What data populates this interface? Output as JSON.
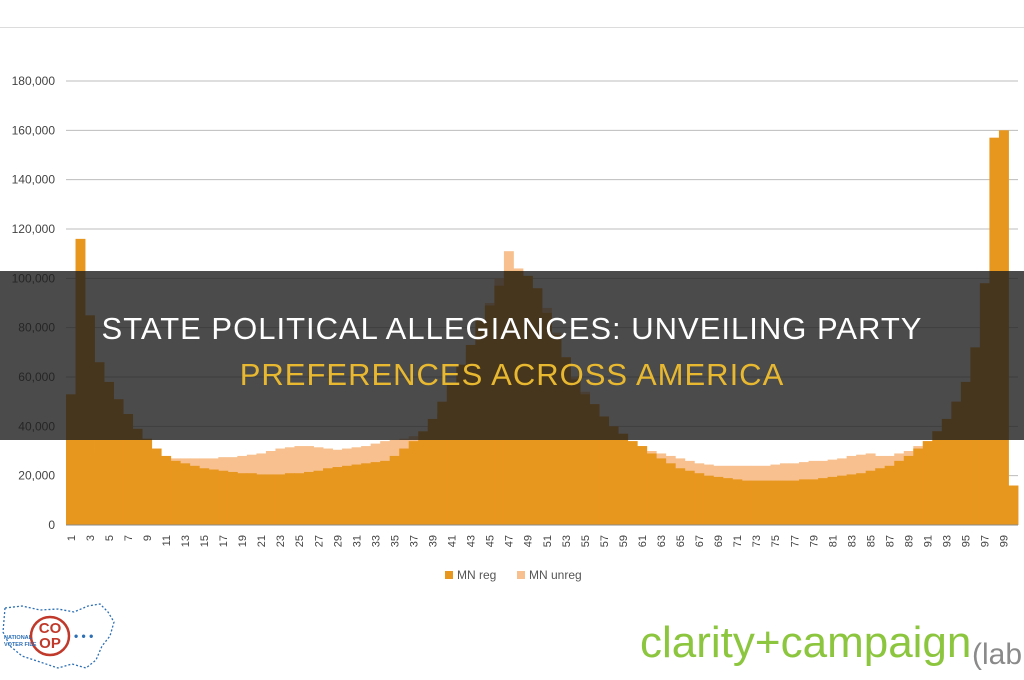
{
  "headline": {
    "line1": "State Political Allegiances: Unveiling Party",
    "line2": "Preferences Across America"
  },
  "logos": {
    "coop_text": "CO\nOP",
    "coop_small_text": "NATIONAL\nVOTER FILE",
    "clarity_text": "clarity+campaign",
    "clarity_suffix": "(lab"
  },
  "colors": {
    "mn_reg": "#e8971e",
    "mn_unreg": "#f7c08e",
    "banner": "#1e1e1e",
    "headline_line1": "#ffffff",
    "headline_line2": "#e8b830",
    "clarity_green": "#8cc63f",
    "clarity_gray": "#8a8a8a"
  },
  "chart_data": {
    "type": "area",
    "title": "",
    "xlabel": "",
    "ylabel": "",
    "ylim": [
      0,
      180000
    ],
    "yticks": [
      0,
      20000,
      40000,
      60000,
      80000,
      100000,
      120000,
      140000,
      160000,
      180000
    ],
    "ytick_labels": [
      "0",
      "20,000",
      "40,000",
      "60,000",
      "80,000",
      "100,000",
      "120,000",
      "140,000",
      "160,000",
      "180,000"
    ],
    "x": [
      1,
      2,
      3,
      4,
      5,
      6,
      7,
      8,
      9,
      10,
      11,
      12,
      13,
      14,
      15,
      16,
      17,
      18,
      19,
      20,
      21,
      22,
      23,
      24,
      25,
      26,
      27,
      28,
      29,
      30,
      31,
      32,
      33,
      34,
      35,
      36,
      37,
      38,
      39,
      40,
      41,
      42,
      43,
      44,
      45,
      46,
      47,
      48,
      49,
      50,
      51,
      52,
      53,
      54,
      55,
      56,
      57,
      58,
      59,
      60,
      61,
      62,
      63,
      64,
      65,
      66,
      67,
      68,
      69,
      70,
      71,
      72,
      73,
      74,
      75,
      76,
      77,
      78,
      79,
      80,
      81,
      82,
      83,
      84,
      85,
      86,
      87,
      88,
      89,
      90,
      91,
      92,
      93,
      94,
      95,
      96,
      97,
      98,
      99,
      100
    ],
    "xtick_labels": [
      "1",
      "3",
      "5",
      "7",
      "9",
      "11",
      "13",
      "15",
      "17",
      "19",
      "21",
      "23",
      "25",
      "27",
      "29",
      "31",
      "33",
      "35",
      "37",
      "39",
      "41",
      "43",
      "45",
      "47",
      "49",
      "51",
      "53",
      "55",
      "57",
      "59",
      "61",
      "63",
      "65",
      "67",
      "69",
      "71",
      "73",
      "75",
      "77",
      "79",
      "81",
      "83",
      "85",
      "87",
      "89",
      "91",
      "93",
      "95",
      "97",
      "99"
    ],
    "grid": true,
    "legend_position": "bottom",
    "series": [
      {
        "name": "MN reg",
        "values": [
          53000,
          116000,
          85000,
          66000,
          58000,
          51000,
          45000,
          39000,
          35000,
          31000,
          28000,
          26000,
          25000,
          24000,
          23000,
          22500,
          22000,
          21500,
          21000,
          21000,
          20500,
          20500,
          20500,
          21000,
          21000,
          21500,
          22000,
          23000,
          23500,
          24000,
          24500,
          25000,
          25500,
          26000,
          28000,
          31000,
          34000,
          38000,
          43000,
          50000,
          57000,
          65000,
          73000,
          83000,
          89000,
          97000,
          103000,
          103000,
          101000,
          96000,
          86000,
          77000,
          68000,
          59000,
          53000,
          49000,
          44000,
          40000,
          37000,
          34000,
          32000,
          29000,
          27000,
          25000,
          23000,
          22000,
          21000,
          20000,
          19500,
          19000,
          18500,
          18000,
          18000,
          18000,
          18000,
          18000,
          18000,
          18500,
          18500,
          19000,
          19500,
          20000,
          20500,
          21000,
          22000,
          23000,
          24000,
          26000,
          28000,
          31000,
          34000,
          38000,
          43000,
          50000,
          58000,
          72000,
          98000,
          157000,
          160000,
          16000
        ]
      },
      {
        "name": "MN unreg",
        "values": [
          30000,
          30000,
          29000,
          28500,
          28000,
          28000,
          28000,
          28000,
          27500,
          27000,
          27000,
          27000,
          27000,
          27000,
          27000,
          27000,
          27500,
          27500,
          28000,
          28500,
          29000,
          30000,
          31000,
          31500,
          32000,
          32000,
          31500,
          31000,
          30500,
          31000,
          31500,
          32000,
          33000,
          34000,
          34500,
          35000,
          36000,
          37000,
          40000,
          45000,
          52000,
          60000,
          70000,
          80000,
          90000,
          100000,
          111000,
          104000,
          100000,
          95000,
          88000,
          78000,
          68000,
          60000,
          54000,
          49000,
          44000,
          40000,
          37000,
          34000,
          32000,
          30000,
          29000,
          28000,
          27000,
          26000,
          25000,
          24500,
          24000,
          24000,
          24000,
          24000,
          24000,
          24000,
          24500,
          25000,
          25000,
          25500,
          26000,
          26000,
          26500,
          27000,
          28000,
          28500,
          29000,
          28000,
          28000,
          29000,
          30000,
          32000,
          34000,
          38000,
          43000,
          50000,
          58000,
          72000,
          98000,
          157000,
          160000,
          16000
        ]
      }
    ]
  }
}
